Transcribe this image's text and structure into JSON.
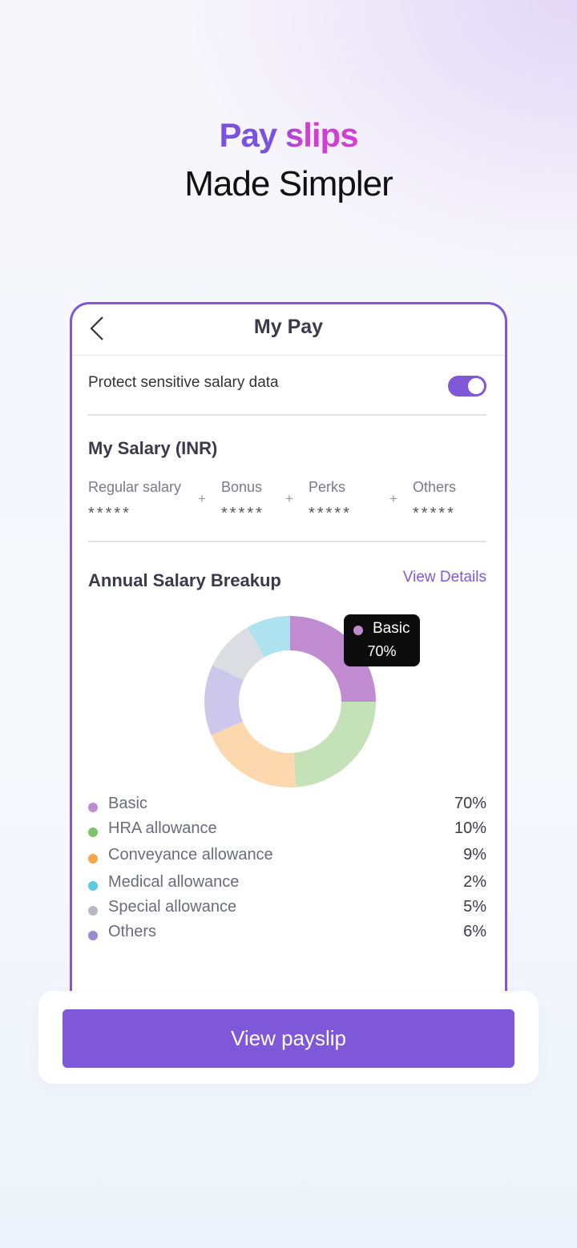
{
  "header": {
    "title": "Pay slips",
    "subtitle": "Made Simpler"
  },
  "screen": {
    "title": "My Pay",
    "protect_label": "Protect sensitive salary data",
    "protect_enabled": true,
    "salary": {
      "title": "My Salary (INR)",
      "operator": "+",
      "components": [
        {
          "label": "Regular salary",
          "value": "*****"
        },
        {
          "label": "Bonus",
          "value": "*****"
        },
        {
          "label": "Perks",
          "value": "*****"
        },
        {
          "label": "Others",
          "value": "*****"
        }
      ]
    },
    "breakup": {
      "title": "Annual Salary Breakup",
      "link": "View Details",
      "items": [
        {
          "label": "Basic",
          "value": "70%",
          "color": "#c08bd0"
        },
        {
          "label": "HRA allowance",
          "value": "10%",
          "color": "#7dc36b"
        },
        {
          "label": "Conveyance allowance",
          "value": "9%",
          "color": "#f7a64a"
        },
        {
          "label": "Medical allowance",
          "value": "2%",
          "color": "#5bcbe3"
        },
        {
          "label": "Special allowance",
          "value": "5%",
          "color": "#b6bac4"
        },
        {
          "label": "Others",
          "value": "6%",
          "color": "#9b8ad2"
        }
      ]
    }
  },
  "button": "View payslip"
}
